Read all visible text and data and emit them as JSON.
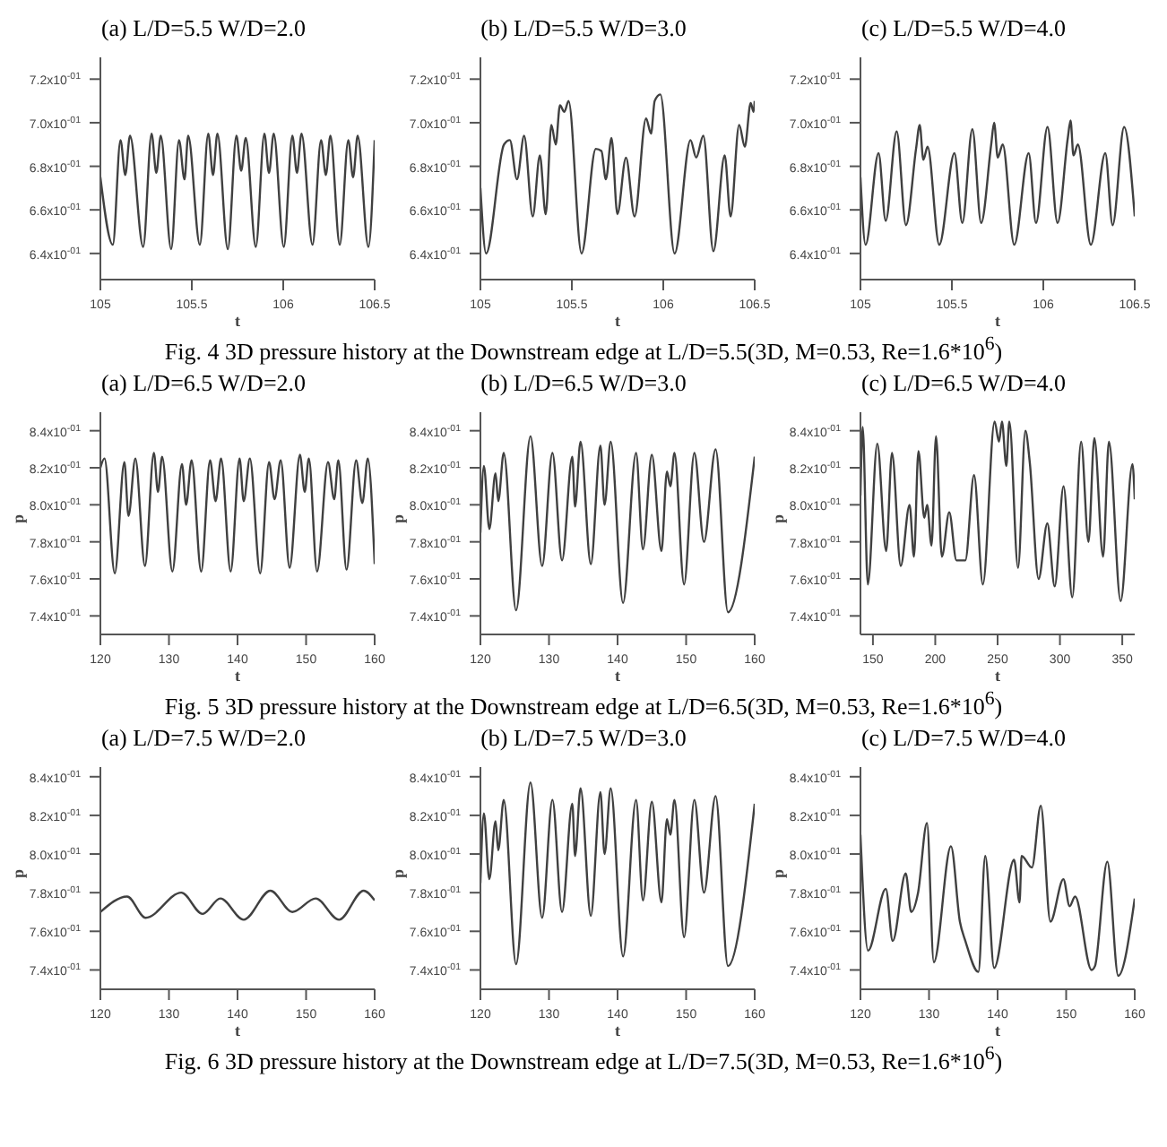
{
  "chart_data": [
    {
      "type": "line",
      "title": "(a) L/D=5.5 W/D=2.0",
      "xlabel": "t",
      "color": "#404040",
      "xlim": [
        105,
        106.5
      ],
      "xticks": [
        105,
        105.5,
        106,
        106.5
      ],
      "ylim": [
        0.628,
        0.73
      ],
      "yticks": [
        {
          "value": 0.64,
          "label": "6.4x10$^{-01}$"
        },
        {
          "value": 0.66,
          "label": "6.6x10$^{-01}$"
        },
        {
          "value": 0.68,
          "label": "6.8x10$^{-01}$"
        },
        {
          "value": 0.7,
          "label": "7.0x10$^{-01}$"
        },
        {
          "value": 0.72,
          "label": "7.2x10$^{-01}$"
        }
      ],
      "x": [
        105.0,
        105.068,
        105.11,
        105.136,
        105.162,
        105.234,
        105.28,
        105.306,
        105.33,
        105.387,
        105.43,
        105.46,
        105.48,
        105.544,
        105.59,
        105.616,
        105.64,
        105.697,
        105.744,
        105.77,
        105.795,
        105.85,
        105.897,
        105.922,
        105.948,
        106.003,
        106.05,
        106.075,
        106.1,
        106.16,
        106.207,
        106.233,
        106.258,
        106.309,
        106.356,
        106.382,
        106.407,
        106.466,
        106.5
      ],
      "values": [
        0.675,
        0.644,
        0.692,
        0.676,
        0.694,
        0.643,
        0.695,
        0.677,
        0.694,
        0.642,
        0.692,
        0.674,
        0.694,
        0.644,
        0.695,
        0.676,
        0.695,
        0.642,
        0.694,
        0.678,
        0.693,
        0.643,
        0.695,
        0.677,
        0.695,
        0.643,
        0.694,
        0.677,
        0.695,
        0.644,
        0.692,
        0.676,
        0.694,
        0.644,
        0.692,
        0.675,
        0.694,
        0.643,
        0.692
      ]
    },
    {
      "type": "line",
      "title": "(b) L/D=5.5 W/D=3.0",
      "xlabel": "t",
      "color": "#404040",
      "xlim": [
        105,
        106.5
      ],
      "xticks": [
        105,
        105.5,
        106,
        106.5
      ],
      "ylim": [
        0.628,
        0.73
      ],
      "yticks": [
        {
          "value": 0.64,
          "label": "6.4x10$^{-01}$"
        },
        {
          "value": 0.66,
          "label": "6.6x10$^{-01}$"
        },
        {
          "value": 0.68,
          "label": "6.8x10$^{-01}$"
        },
        {
          "value": 0.7,
          "label": "7.0x10$^{-01}$"
        },
        {
          "value": 0.72,
          "label": "7.2x10$^{-01}$"
        }
      ],
      "annotations": [
        "Fig. 4 3D pressure history at the Downstream edge at L/D=5.5(3D, M=0.53, Re=1.6*10$^{6}$)"
      ],
      "x": [
        105.0,
        105.031,
        105.129,
        105.161,
        105.2,
        105.239,
        105.286,
        105.325,
        105.357,
        105.388,
        105.412,
        105.435,
        105.459,
        105.482,
        105.553,
        105.631,
        105.662,
        105.686,
        105.717,
        105.749,
        105.796,
        105.843,
        105.906,
        105.933,
        105.953,
        105.984,
        106.062,
        106.149,
        106.18,
        106.219,
        106.274,
        106.336,
        106.368,
        106.415,
        106.446,
        106.478,
        106.494,
        106.5
      ],
      "values": [
        0.67,
        0.64,
        0.69,
        0.692,
        0.674,
        0.694,
        0.657,
        0.685,
        0.658,
        0.699,
        0.69,
        0.708,
        0.705,
        0.71,
        0.64,
        0.688,
        0.687,
        0.674,
        0.693,
        0.658,
        0.684,
        0.657,
        0.702,
        0.695,
        0.71,
        0.713,
        0.64,
        0.692,
        0.684,
        0.694,
        0.641,
        0.685,
        0.657,
        0.699,
        0.689,
        0.709,
        0.705,
        0.71
      ]
    },
    {
      "type": "line",
      "title": "(c) L/D=5.5 W/D=4.0",
      "xlabel": "t",
      "color": "#404040",
      "xlim": [
        105,
        106.5
      ],
      "xticks": [
        105,
        105.5,
        106,
        106.5
      ],
      "ylim": [
        0.628,
        0.73
      ],
      "yticks": [
        {
          "value": 0.64,
          "label": "6.4x10$^{-01}$"
        },
        {
          "value": 0.66,
          "label": "6.6x10$^{-01}$"
        },
        {
          "value": 0.68,
          "label": "6.8x10$^{-01}$"
        },
        {
          "value": 0.7,
          "label": "7.0x10$^{-01}$"
        },
        {
          "value": 0.72,
          "label": "7.2x10$^{-01}$"
        }
      ],
      "x": [
        105.0,
        105.028,
        105.099,
        105.138,
        105.198,
        105.249,
        105.304,
        105.324,
        105.344,
        105.367,
        105.431,
        105.514,
        105.557,
        105.612,
        105.66,
        105.715,
        105.731,
        105.751,
        105.778,
        105.841,
        105.92,
        105.96,
        106.023,
        106.078,
        106.134,
        106.149,
        106.165,
        106.189,
        106.26,
        106.339,
        106.379,
        106.442,
        106.5
      ],
      "values": [
        0.675,
        0.644,
        0.686,
        0.655,
        0.696,
        0.653,
        0.688,
        0.699,
        0.683,
        0.689,
        0.644,
        0.686,
        0.654,
        0.697,
        0.654,
        0.69,
        0.7,
        0.684,
        0.69,
        0.644,
        0.686,
        0.654,
        0.698,
        0.654,
        0.693,
        0.701,
        0.685,
        0.69,
        0.644,
        0.686,
        0.653,
        0.698,
        0.657
      ]
    },
    {
      "type": "line",
      "title": "(a) L/D=6.5 W/D=2.0",
      "xlabel": "t",
      "ylabel": "p",
      "color": "#404040",
      "xlim": [
        120,
        160
      ],
      "xticks": [
        120,
        130,
        140,
        150,
        160
      ],
      "ylim": [
        0.73,
        0.85
      ],
      "yticks": [
        {
          "value": 0.74,
          "label": "7.4x10$^{-01}$"
        },
        {
          "value": 0.76,
          "label": "7.6x10$^{-01}$"
        },
        {
          "value": 0.78,
          "label": "7.8x10$^{-01}$"
        },
        {
          "value": 0.8,
          "label": "8.0x10$^{-01}$"
        },
        {
          "value": 0.82,
          "label": "8.2x10$^{-01}$"
        },
        {
          "value": 0.84,
          "label": "8.4x10$^{-01}$"
        }
      ],
      "x": [
        120,
        120.6,
        122.1,
        123.5,
        124.1,
        125.1,
        126.5,
        127.8,
        128.4,
        129.0,
        130.5,
        131.9,
        132.5,
        133.3,
        134.7,
        136.0,
        136.8,
        137.6,
        139.0,
        140.3,
        140.9,
        141.8,
        143.3,
        144.6,
        145.4,
        146.3,
        147.6,
        149.1,
        149.8,
        150.4,
        151.6,
        153.2,
        154.1,
        154.7,
        155.9,
        157.3,
        158.2,
        159.0,
        160
      ],
      "values": [
        0.82,
        0.825,
        0.763,
        0.823,
        0.794,
        0.825,
        0.767,
        0.828,
        0.807,
        0.826,
        0.764,
        0.822,
        0.8,
        0.824,
        0.764,
        0.824,
        0.802,
        0.825,
        0.764,
        0.825,
        0.802,
        0.825,
        0.763,
        0.823,
        0.803,
        0.824,
        0.766,
        0.827,
        0.807,
        0.825,
        0.764,
        0.823,
        0.803,
        0.824,
        0.765,
        0.824,
        0.801,
        0.825,
        0.768
      ]
    },
    {
      "type": "line",
      "title": "(b) L/D=6.5 W/D=3.0",
      "xlabel": "t",
      "ylabel": "p",
      "color": "#404040",
      "xlim": [
        120,
        160
      ],
      "xticks": [
        120,
        130,
        140,
        150,
        160
      ],
      "ylim": [
        0.73,
        0.85
      ],
      "yticks": [
        {
          "value": 0.74,
          "label": "7.4x10$^{-01}$"
        },
        {
          "value": 0.76,
          "label": "7.6x10$^{-01}$"
        },
        {
          "value": 0.78,
          "label": "7.8x10$^{-01}$"
        },
        {
          "value": 0.8,
          "label": "8.0x10$^{-01}$"
        },
        {
          "value": 0.82,
          "label": "8.2x10$^{-01}$"
        },
        {
          "value": 0.84,
          "label": "8.4x10$^{-01}$"
        }
      ],
      "annotations": [
        "Fig. 5 3D pressure history at the Downstream edge at L/D=6.5(3D, M=0.53, Re=1.6*10$^{6}$)"
      ],
      "x": [
        120,
        120.5,
        121.3,
        122.2,
        122.6,
        123.4,
        125.2,
        127.3,
        129.0,
        130.5,
        131.9,
        133.4,
        133.8,
        134.6,
        136.1,
        137.5,
        138.1,
        139.0,
        140.8,
        142.7,
        143.7,
        145.0,
        146.4,
        147.2,
        147.7,
        148.3,
        149.7,
        151.2,
        152.6,
        154.3,
        156.1,
        160
      ],
      "values": [
        0.785,
        0.821,
        0.787,
        0.817,
        0.802,
        0.828,
        0.743,
        0.837,
        0.767,
        0.828,
        0.77,
        0.826,
        0.799,
        0.834,
        0.768,
        0.832,
        0.8,
        0.834,
        0.747,
        0.828,
        0.776,
        0.827,
        0.775,
        0.818,
        0.81,
        0.828,
        0.757,
        0.828,
        0.78,
        0.83,
        0.742,
        0.826
      ]
    },
    {
      "type": "line",
      "title": "(c) L/D=6.5 W/D=4.0",
      "xlabel": "t",
      "ylabel": "p",
      "color": "#404040",
      "xlim": [
        140,
        360
      ],
      "xticks": [
        150,
        200,
        250,
        300,
        350
      ],
      "ylim": [
        0.73,
        0.85
      ],
      "yticks": [
        {
          "value": 0.74,
          "label": "7.4x10$^{-01}$"
        },
        {
          "value": 0.76,
          "label": "7.6x10$^{-01}$"
        },
        {
          "value": 0.78,
          "label": "7.8x10$^{-01}$"
        },
        {
          "value": 0.8,
          "label": "8.0x10$^{-01}$"
        },
        {
          "value": 0.82,
          "label": "8.2x10$^{-01}$"
        },
        {
          "value": 0.84,
          "label": "8.4x10$^{-01}$"
        }
      ],
      "x": [
        140.0,
        141.8,
        145.9,
        153.5,
        160.6,
        165.3,
        172.3,
        179.4,
        182.9,
        186.5,
        191.2,
        193.5,
        197.0,
        200.6,
        205.3,
        211.2,
        217.0,
        224.1,
        231.1,
        238.2,
        247.6,
        251.1,
        253.5,
        257.0,
        259.4,
        266.4,
        272.3,
        275.8,
        282.9,
        289.9,
        295.8,
        302.9,
        309.9,
        317.0,
        322.9,
        327.6,
        334.6,
        339.3,
        348.7,
        358.2,
        360
      ],
      "values": [
        0.805,
        0.842,
        0.757,
        0.833,
        0.775,
        0.828,
        0.767,
        0.8,
        0.772,
        0.829,
        0.793,
        0.8,
        0.778,
        0.837,
        0.772,
        0.796,
        0.77,
        0.77,
        0.816,
        0.757,
        0.845,
        0.834,
        0.845,
        0.821,
        0.845,
        0.766,
        0.84,
        0.823,
        0.76,
        0.79,
        0.756,
        0.81,
        0.75,
        0.834,
        0.78,
        0.836,
        0.772,
        0.834,
        0.748,
        0.822,
        0.803
      ]
    },
    {
      "type": "line",
      "title": "(a) L/D=7.5 W/D=2.0",
      "xlabel": "t",
      "ylabel": "p",
      "color": "#404040",
      "xlim": [
        120,
        160
      ],
      "xticks": [
        120,
        130,
        140,
        150,
        160
      ],
      "ylim": [
        0.73,
        0.845
      ],
      "yticks": [
        {
          "value": 0.74,
          "label": "7.4x10$^{-01}$"
        },
        {
          "value": 0.76,
          "label": "7.6x10$^{-01}$"
        },
        {
          "value": 0.78,
          "label": "7.8x10$^{-01}$"
        },
        {
          "value": 0.8,
          "label": "8.0x10$^{-01}$"
        },
        {
          "value": 0.82,
          "label": "8.2x10$^{-01}$"
        },
        {
          "value": 0.84,
          "label": "8.4x10$^{-01}$"
        }
      ],
      "x": [
        120,
        123.9,
        126.6,
        131.8,
        134.9,
        137.5,
        140.9,
        144.8,
        148.0,
        151.4,
        154.8,
        158.4,
        160
      ],
      "values": [
        0.77,
        0.778,
        0.767,
        0.78,
        0.769,
        0.777,
        0.766,
        0.781,
        0.77,
        0.777,
        0.766,
        0.781,
        0.776
      ]
    },
    {
      "type": "line",
      "title": "(b) L/D=7.5 W/D=3.0",
      "xlabel": "t",
      "ylabel": "p",
      "color": "#404040",
      "xlim": [
        120,
        160
      ],
      "xticks": [
        120,
        130,
        140,
        150,
        160
      ],
      "ylim": [
        0.73,
        0.845
      ],
      "yticks": [
        {
          "value": 0.74,
          "label": "7.4x10$^{-01}$"
        },
        {
          "value": 0.76,
          "label": "7.6x10$^{-01}$"
        },
        {
          "value": 0.78,
          "label": "7.8x10$^{-01}$"
        },
        {
          "value": 0.8,
          "label": "8.0x10$^{-01}$"
        },
        {
          "value": 0.82,
          "label": "8.2x10$^{-01}$"
        },
        {
          "value": 0.84,
          "label": "8.4x10$^{-01}$"
        }
      ],
      "annotations": [
        "Fig. 6 3D pressure history at the Downstream edge at L/D=7.5(3D, M=0.53, Re=1.6*10$^{6}$)"
      ],
      "x": [
        120,
        120.5,
        121.3,
        122.2,
        122.6,
        123.4,
        125.2,
        127.3,
        129.0,
        130.5,
        131.9,
        133.4,
        133.8,
        134.6,
        136.1,
        137.5,
        138.1,
        139.0,
        140.8,
        142.7,
        143.7,
        145.0,
        146.4,
        147.2,
        147.7,
        148.3,
        149.7,
        151.2,
        152.6,
        154.3,
        156.1,
        160
      ],
      "values": [
        0.785,
        0.821,
        0.787,
        0.817,
        0.802,
        0.828,
        0.743,
        0.837,
        0.767,
        0.828,
        0.77,
        0.826,
        0.799,
        0.834,
        0.768,
        0.832,
        0.8,
        0.834,
        0.747,
        0.828,
        0.776,
        0.827,
        0.775,
        0.818,
        0.81,
        0.828,
        0.757,
        0.828,
        0.78,
        0.83,
        0.742,
        0.826
      ]
    },
    {
      "type": "line",
      "title": "(c) L/D=7.5 W/D=4.0",
      "xlabel": "t",
      "ylabel": "p",
      "color": "#404040",
      "xlim": [
        120,
        160
      ],
      "xticks": [
        120,
        130,
        140,
        150,
        160
      ],
      "ylim": [
        0.73,
        0.845
      ],
      "yticks": [
        {
          "value": 0.74,
          "label": "7.4x10$^{-01}$"
        },
        {
          "value": 0.76,
          "label": "7.6x10$^{-01}$"
        },
        {
          "value": 0.78,
          "label": "7.8x10$^{-01}$"
        },
        {
          "value": 0.8,
          "label": "8.0x10$^{-01}$"
        },
        {
          "value": 0.82,
          "label": "8.2x10$^{-01}$"
        },
        {
          "value": 0.84,
          "label": "8.4x10$^{-01}$"
        }
      ],
      "x": [
        120,
        121.1,
        123.7,
        124.7,
        126.6,
        127.4,
        128.4,
        129.7,
        130.7,
        133.2,
        134.5,
        135.3,
        137.2,
        138.2,
        139.5,
        142.4,
        143.2,
        143.5,
        145.0,
        146.3,
        147.7,
        149.6,
        150.5,
        151.3,
        153.7,
        154.2,
        156.0,
        157.6,
        160
      ],
      "values": [
        0.81,
        0.75,
        0.782,
        0.755,
        0.79,
        0.77,
        0.78,
        0.816,
        0.744,
        0.804,
        0.765,
        0.755,
        0.739,
        0.799,
        0.741,
        0.797,
        0.775,
        0.799,
        0.793,
        0.825,
        0.765,
        0.787,
        0.773,
        0.778,
        0.74,
        0.742,
        0.796,
        0.737,
        0.777
      ]
    }
  ]
}
